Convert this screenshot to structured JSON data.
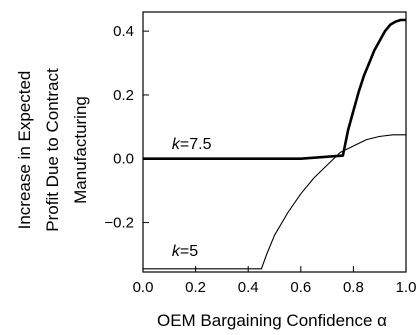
{
  "chart_data": {
    "type": "line",
    "xlabel": "OEM Bargaining Confidence α",
    "ylabel_lines": [
      "Increase in Expected",
      "Profit Due to Contract",
      "Manufacturing"
    ],
    "xlim": [
      0.0,
      1.0
    ],
    "ylim": [
      -0.355,
      0.46
    ],
    "x_ticks": [
      0.0,
      0.2,
      0.4,
      0.6,
      0.8,
      1.0
    ],
    "x_tick_labels": [
      "0.0",
      "0.2",
      "0.4",
      "0.6",
      "0.8",
      "1.0"
    ],
    "y_ticks": [
      -0.2,
      0.0,
      0.2,
      0.4
    ],
    "y_tick_labels": [
      "−0.2",
      "0.0",
      "0.2",
      "0.4"
    ],
    "grid": false,
    "series": [
      {
        "label_prefix": "k",
        "label_suffix": "=7.5",
        "style": "thick",
        "x": [
          0.0,
          0.2,
          0.4,
          0.6,
          0.76,
          0.78,
          0.8,
          0.82,
          0.84,
          0.86,
          0.88,
          0.9,
          0.92,
          0.94,
          0.96,
          0.98,
          1.0
        ],
        "y": [
          0.0,
          0.0,
          0.0,
          0.0,
          0.01,
          0.09,
          0.15,
          0.21,
          0.26,
          0.3,
          0.34,
          0.37,
          0.4,
          0.42,
          0.43,
          0.435,
          0.435
        ]
      },
      {
        "label_prefix": "k",
        "label_suffix": "=5",
        "style": "thin",
        "x": [
          0.0,
          0.2,
          0.45,
          0.47,
          0.5,
          0.55,
          0.6,
          0.65,
          0.7,
          0.75,
          0.8,
          0.85,
          0.9,
          0.95,
          1.0
        ],
        "y": [
          -0.345,
          -0.345,
          -0.345,
          -0.3,
          -0.24,
          -0.17,
          -0.11,
          -0.06,
          -0.02,
          0.02,
          0.04,
          0.06,
          0.07,
          0.075,
          0.075
        ]
      }
    ],
    "annotations": [
      {
        "prefix": "k",
        "suffix": "=7.5",
        "x": 0.11,
        "y": 0.03
      },
      {
        "prefix": "k",
        "suffix": "=5",
        "x": 0.11,
        "y": -0.305
      }
    ]
  }
}
